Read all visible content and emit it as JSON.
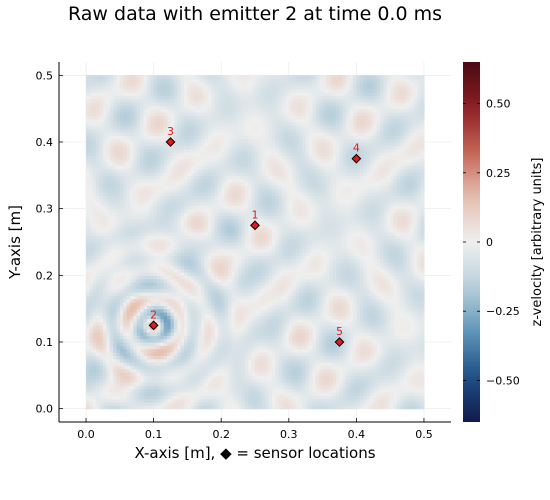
{
  "chart_data": {
    "type": "heatmap",
    "title": "Raw data with emitter 2 at time 0.0 ms",
    "xlabel": "X-axis [m],  ◆ = sensor locations",
    "ylabel": "Y-axis [m]",
    "colorbar_label": "z-velocity [arbitrary units]",
    "xlim": [
      -0.04,
      0.54
    ],
    "ylim": [
      -0.02,
      0.52
    ],
    "field_extent": {
      "x": [
        0.0,
        0.5
      ],
      "y": [
        0.0,
        0.5
      ]
    },
    "clim": [
      -0.65,
      0.65
    ],
    "xticks": [
      0.0,
      0.1,
      0.2,
      0.3,
      0.4,
      0.5
    ],
    "xtick_labels": [
      "0.0",
      "0.1",
      "0.2",
      "0.3",
      "0.4",
      "0.5"
    ],
    "yticks": [
      0.0,
      0.1,
      0.2,
      0.3,
      0.4,
      0.5
    ],
    "ytick_labels": [
      "0.0",
      "0.1",
      "0.2",
      "0.3",
      "0.4",
      "0.5"
    ],
    "cbar_ticks": [
      0.5,
      0.25,
      0.0,
      -0.25,
      -0.5
    ],
    "cbar_tick_labels": [
      "0.50",
      "0.25",
      "0",
      "−0.25",
      "−0.50"
    ],
    "colormap": [
      "#111a4d",
      "#1f4e86",
      "#5f94b8",
      "#b9d0dc",
      "#efefef",
      "#e5c0b0",
      "#c46557",
      "#8c1d24",
      "#4a0a15"
    ],
    "grid": true,
    "legend": "none",
    "emitter": {
      "x": 0.1,
      "y": 0.125
    },
    "sensors": [
      {
        "id": 1,
        "label": "1",
        "x": 0.25,
        "y": 0.275
      },
      {
        "id": 2,
        "label": "2",
        "x": 0.1,
        "y": 0.125
      },
      {
        "id": 3,
        "label": "3",
        "x": 0.125,
        "y": 0.4
      },
      {
        "id": 4,
        "label": "4",
        "x": 0.4,
        "y": 0.375
      },
      {
        "id": 5,
        "label": "5",
        "x": 0.375,
        "y": 0.1
      }
    ],
    "marker_color": "#e31a1c"
  }
}
